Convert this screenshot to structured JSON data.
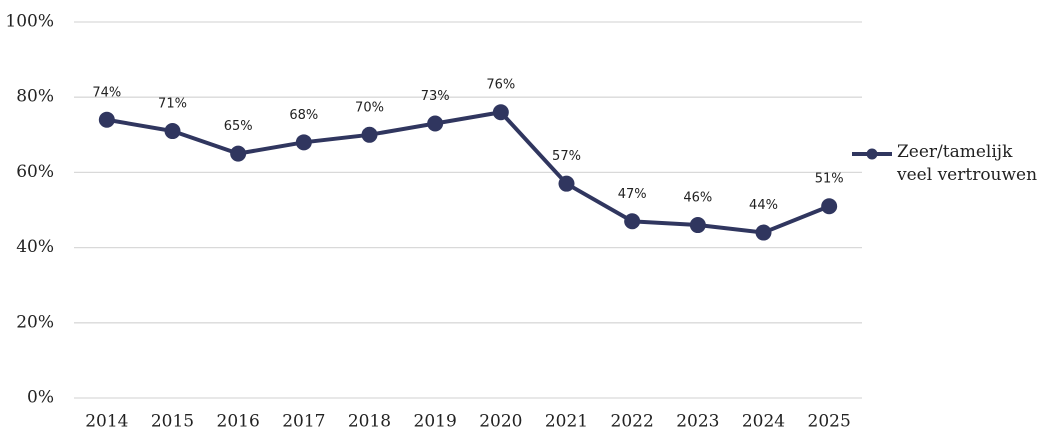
{
  "chart_data": {
    "type": "line",
    "categories": [
      "2014",
      "2015",
      "2016",
      "2017",
      "2018",
      "2019",
      "2020",
      "2021",
      "2022",
      "2023",
      "2024",
      "2025"
    ],
    "series": [
      {
        "name": "Zeer/tamelijk veel vertrouwen",
        "color": "#30365f",
        "values": [
          74,
          71,
          65,
          68,
          70,
          73,
          76,
          57,
          47,
          46,
          44,
          51
        ],
        "value_labels": [
          "74%",
          "71%",
          "65%",
          "68%",
          "70%",
          "73%",
          "76%",
          "57%",
          "47%",
          "46%",
          "44%",
          "51%"
        ]
      }
    ],
    "ylim": [
      0,
      100
    ],
    "yticks": [
      {
        "value": 0,
        "label": "0%"
      },
      {
        "value": 20,
        "label": "20%"
      },
      {
        "value": 40,
        "label": "40%"
      },
      {
        "value": 60,
        "label": "60%"
      },
      {
        "value": 80,
        "label": "80%"
      },
      {
        "value": 100,
        "label": "100%"
      }
    ],
    "grid": true,
    "legend": "right"
  }
}
